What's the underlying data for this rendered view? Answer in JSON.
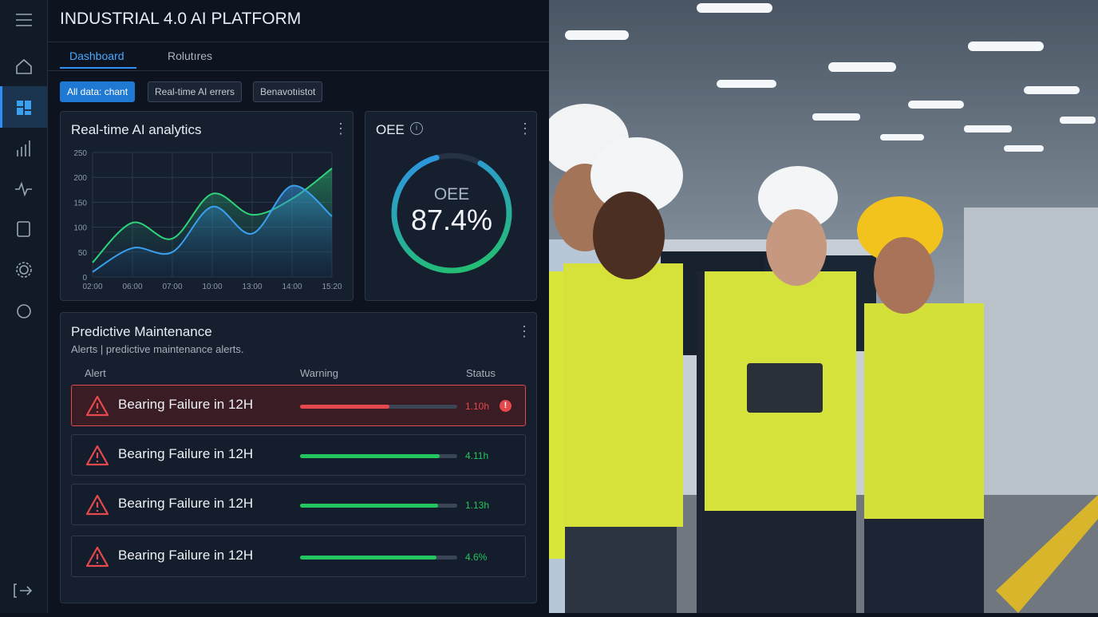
{
  "header": {
    "title": "INDUSTRIAL 4.0 AI PLATFORM"
  },
  "tabs": [
    "Dashboard",
    "Rolutıres"
  ],
  "filters": [
    "All data: chant",
    "Real-time AI errers",
    "Benavotıistot"
  ],
  "analytics": {
    "title": "Real-time AI analytics",
    "chart_data": {
      "type": "area",
      "categories": [
        "02:00",
        "06:00",
        "07:00",
        "10:00",
        "13:00",
        "14:00",
        "15:20"
      ],
      "series": [
        {
          "color": "#2fd47a",
          "values": [
            29,
            109,
            77,
            167,
            125,
            157,
            218
          ]
        },
        {
          "color": "#3aa0f0",
          "values": [
            10,
            58,
            50,
            141,
            87,
            183,
            122
          ]
        }
      ],
      "ylim": [
        0,
        250
      ],
      "yticks": [
        0,
        50,
        100,
        150,
        200,
        250
      ],
      "grid": true
    }
  },
  "oee": {
    "title": "OEE",
    "label": "OEE",
    "value": 87.4,
    "value_label": "87.4%"
  },
  "maintenance": {
    "title": "Predictive Maintenance",
    "subtitle": "Alerts | predictive maintenance alerts.",
    "columns": [
      "Alert",
      "Warning",
      "Status"
    ],
    "rows": [
      {
        "alert": "Bearing Failure in 12H",
        "progress": 57,
        "status": "1.10h",
        "color": "#e5484d"
      },
      {
        "alert": "Bearing Failure in 12H",
        "progress": 89,
        "status": "4.11h",
        "color": "#22c55e"
      },
      {
        "alert": "Bearing Failure in 12H",
        "progress": 88,
        "status": "1.13h",
        "color": "#22c55e"
      },
      {
        "alert": "Bearing Failure in 12H",
        "progress": 87,
        "status": "4.6%",
        "color": "#22c55e"
      }
    ]
  }
}
